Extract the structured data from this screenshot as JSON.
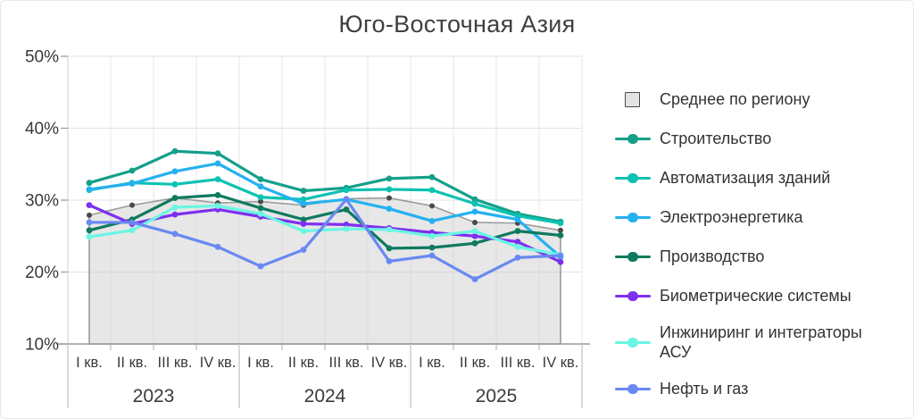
{
  "title": "Юго-Восточная Азия",
  "chart_data": {
    "type": "line",
    "title": "Юго-Восточная Азия",
    "unit": "%",
    "ylim": [
      10,
      50
    ],
    "y_tick_labels": [
      "50%",
      "40%",
      "30%",
      "20%",
      "10%"
    ],
    "y_tick_values": [
      50,
      40,
      30,
      20,
      10
    ],
    "quarter_labels": [
      "I кв.",
      "II кв.",
      "III кв.",
      "IV кв."
    ],
    "years": [
      "2023",
      "2024",
      "2025"
    ],
    "grid": true,
    "legend_position": "right",
    "average_series": {
      "slug": "region-average",
      "name": "Среднее по региону",
      "style": "area",
      "line_color": "#9b9b9b",
      "fill_color": "#dcdcdc",
      "dot_color": "#4a4a4a",
      "values": [
        27.9,
        29.3,
        30.3,
        29.6,
        29.8,
        29.3,
        30.2,
        30.3,
        29.2,
        26.9,
        26.8,
        25.8
      ]
    },
    "series": [
      {
        "slug": "construction",
        "name": "Строительство",
        "color": "#14a08a",
        "values": [
          32.4,
          34.1,
          36.8,
          36.5,
          32.9,
          31.3,
          31.7,
          33.0,
          33.2,
          30.1,
          28.1,
          27.0
        ]
      },
      {
        "slug": "building-automation",
        "name": "Автоматизация зданий",
        "color": "#0cc2b2",
        "values": [
          31.4,
          32.4,
          32.2,
          32.9,
          30.4,
          30.1,
          31.4,
          31.5,
          31.4,
          29.5,
          27.8,
          26.8
        ]
      },
      {
        "slug": "electric-power",
        "name": "Электроэнергетика",
        "color": "#25b1f0",
        "values": [
          31.5,
          32.3,
          34.0,
          35.1,
          31.9,
          29.5,
          30.1,
          28.8,
          27.1,
          28.4,
          27.3,
          22.1
        ]
      },
      {
        "slug": "manufacturing",
        "name": "Производство",
        "color": "#0e7a5e",
        "values": [
          25.8,
          27.3,
          30.3,
          30.7,
          28.9,
          27.3,
          28.7,
          23.3,
          23.4,
          24.0,
          25.7,
          25.1
        ]
      },
      {
        "slug": "biometric-systems",
        "name": "Биометрические системы",
        "color": "#7e2ff0",
        "values": [
          29.3,
          26.7,
          28.0,
          28.7,
          27.7,
          26.7,
          26.6,
          26.1,
          25.5,
          25.0,
          24.2,
          21.4
        ]
      },
      {
        "slug": "engineering-acs",
        "name": "Инжиниринг и интеграторы АСУ",
        "color": "#6af6e3",
        "values": [
          24.9,
          25.8,
          29.0,
          29.2,
          28.1,
          25.7,
          26.0,
          25.9,
          25.0,
          25.7,
          23.5,
          22.4
        ]
      },
      {
        "slug": "oil-and-gas",
        "name": "Нефть и газ",
        "color": "#6989f2",
        "values": [
          26.9,
          26.9,
          25.3,
          23.5,
          20.8,
          23.1,
          30.1,
          21.5,
          22.3,
          19.0,
          22.0,
          22.3
        ]
      }
    ]
  }
}
